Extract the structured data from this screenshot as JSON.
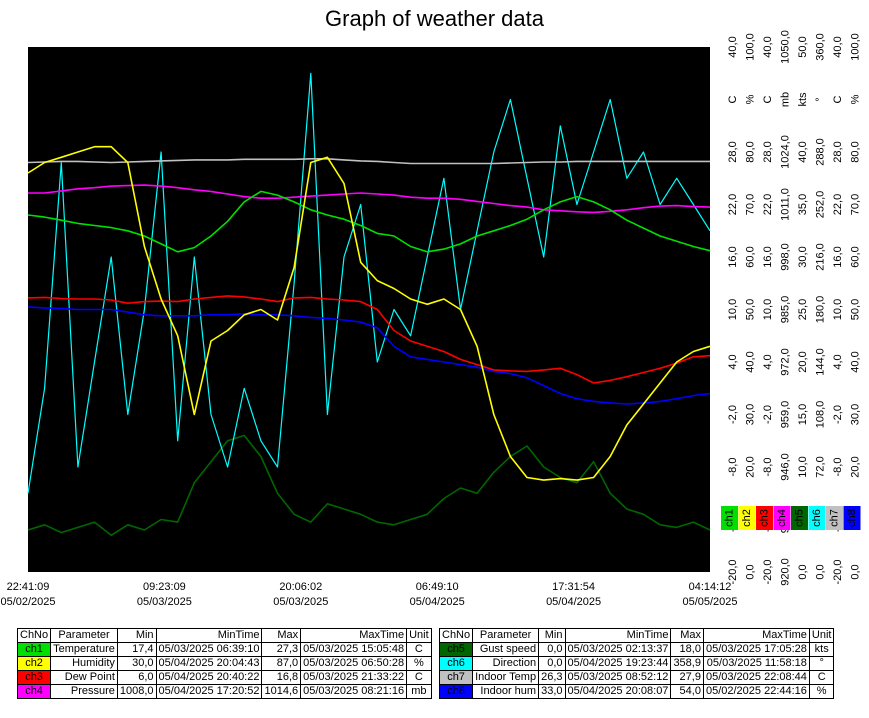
{
  "title": "Graph of weather data",
  "chart_data": {
    "type": "line",
    "x_ticks": [
      {
        "time": "22:41:09",
        "date": "05/02/2025"
      },
      {
        "time": "09:23:09",
        "date": "05/03/2025"
      },
      {
        "time": "20:06:02",
        "date": "05/03/2025"
      },
      {
        "time": "06:49:10",
        "date": "05/04/2025"
      },
      {
        "time": "17:31:54",
        "date": "05/04/2025"
      },
      {
        "time": "04:14:12",
        "date": "05/05/2025"
      }
    ],
    "x_range": [
      0,
      5
    ],
    "y_axes": [
      {
        "unit": "C",
        "ticks": [
          "-20,0",
          "-14,0",
          "-8,0",
          "-2,0",
          "4,0",
          "10,0",
          "16,0",
          "22,0",
          "28,0",
          "34,0",
          "40,0"
        ],
        "unit_at_tick": 9
      },
      {
        "unit": "%",
        "ticks": [
          "0,0",
          "10,0",
          "20,0",
          "30,0",
          "40,0",
          "50,0",
          "60,0",
          "70,0",
          "80,0",
          "90,0",
          "100,0"
        ],
        "unit_at_tick": 9
      },
      {
        "unit": "C",
        "ticks": [
          "-20,0",
          "-14,0",
          "-8,0",
          "-2,0",
          "4,0",
          "10,0",
          "16,0",
          "22,0",
          "28,0",
          "34,0",
          "40,0"
        ],
        "unit_at_tick": 9
      },
      {
        "unit": "mb",
        "ticks": [
          "920,0",
          "933,0",
          "946,0",
          "959,0",
          "972,0",
          "985,0",
          "998,0",
          "1011,0",
          "1024,0",
          "1037,0",
          "1050,0"
        ],
        "unit_at_tick": 9
      },
      {
        "unit": "kts",
        "ticks": [
          "0,0",
          "5,0",
          "10,0",
          "15,0",
          "20,0",
          "25,0",
          "30,0",
          "35,0",
          "40,0",
          "45,0",
          "50,0"
        ],
        "unit_at_tick": 9
      },
      {
        "unit": "°",
        "ticks": [
          "0,0",
          "36,0",
          "72,0",
          "108,0",
          "144,0",
          "180,0",
          "216,0",
          "252,0",
          "288,0",
          "324,0",
          "360,0"
        ],
        "unit_at_tick": 9
      },
      {
        "unit": "C",
        "ticks": [
          "-20,0",
          "-14,0",
          "-8,0",
          "-2,0",
          "4,0",
          "10,0",
          "16,0",
          "22,0",
          "28,0",
          "34,0",
          "40,0"
        ],
        "unit_at_tick": 9
      },
      {
        "unit": "%",
        "ticks": [
          "0,0",
          "10,0",
          "20,0",
          "30,0",
          "40,0",
          "50,0",
          "60,0",
          "70,0",
          "80,0",
          "90,0",
          "100,0"
        ],
        "unit_at_tick": 9
      }
    ],
    "y_range_fraction": [
      0,
      1
    ],
    "series": [
      {
        "ch": "ch1",
        "name": "Temperature",
        "color": "#00e000",
        "values_frac": [
          0.68,
          0.676,
          0.67,
          0.664,
          0.66,
          0.656,
          0.65,
          0.64,
          0.625,
          0.61,
          0.618,
          0.64,
          0.668,
          0.705,
          0.725,
          0.718,
          0.705,
          0.69,
          0.68,
          0.672,
          0.66,
          0.645,
          0.64,
          0.62,
          0.61,
          0.615,
          0.625,
          0.64,
          0.65,
          0.66,
          0.672,
          0.69,
          0.705,
          0.715,
          0.705,
          0.69,
          0.67,
          0.655,
          0.64,
          0.63,
          0.62,
          0.612
        ]
      },
      {
        "ch": "ch2",
        "name": "Humidity",
        "color": "#ffff00",
        "values_frac": [
          0.76,
          0.78,
          0.79,
          0.8,
          0.81,
          0.81,
          0.78,
          0.62,
          0.52,
          0.45,
          0.3,
          0.44,
          0.46,
          0.49,
          0.5,
          0.48,
          0.58,
          0.78,
          0.79,
          0.74,
          0.59,
          0.555,
          0.54,
          0.52,
          0.51,
          0.52,
          0.5,
          0.43,
          0.3,
          0.22,
          0.18,
          0.175,
          0.178,
          0.175,
          0.18,
          0.22,
          0.28,
          0.32,
          0.36,
          0.4,
          0.42,
          0.43
        ]
      },
      {
        "ch": "ch3",
        "name": "Dew Point",
        "color": "#ff0000",
        "values_frac": [
          0.522,
          0.523,
          0.521,
          0.52,
          0.52,
          0.518,
          0.512,
          0.515,
          0.516,
          0.515,
          0.52,
          0.523,
          0.526,
          0.524,
          0.52,
          0.515,
          0.522,
          0.523,
          0.52,
          0.518,
          0.515,
          0.5,
          0.46,
          0.44,
          0.43,
          0.42,
          0.405,
          0.395,
          0.385,
          0.383,
          0.382,
          0.385,
          0.388,
          0.376,
          0.36,
          0.365,
          0.372,
          0.38,
          0.388,
          0.398,
          0.41,
          0.412
        ]
      },
      {
        "ch": "ch4",
        "name": "Pressure",
        "color": "#ff00ff",
        "values_frac": [
          0.722,
          0.722,
          0.726,
          0.73,
          0.732,
          0.735,
          0.736,
          0.737,
          0.735,
          0.732,
          0.728,
          0.725,
          0.72,
          0.715,
          0.712,
          0.712,
          0.714,
          0.716,
          0.718,
          0.72,
          0.722,
          0.72,
          0.718,
          0.714,
          0.712,
          0.712,
          0.71,
          0.706,
          0.702,
          0.698,
          0.695,
          0.69,
          0.688,
          0.686,
          0.685,
          0.687,
          0.69,
          0.694,
          0.697,
          0.698,
          0.696,
          0.695
        ]
      },
      {
        "ch": "ch5",
        "name": "Gust speed",
        "color": "#006600",
        "values_frac": [
          0.08,
          0.09,
          0.075,
          0.085,
          0.095,
          0.07,
          0.09,
          0.08,
          0.1,
          0.095,
          0.17,
          0.21,
          0.25,
          0.26,
          0.22,
          0.15,
          0.11,
          0.095,
          0.13,
          0.12,
          0.11,
          0.095,
          0.09,
          0.1,
          0.11,
          0.14,
          0.16,
          0.15,
          0.19,
          0.22,
          0.24,
          0.2,
          0.18,
          0.17,
          0.21,
          0.15,
          0.12,
          0.11,
          0.09,
          0.085,
          0.095,
          0.08
        ]
      },
      {
        "ch": "ch6",
        "name": "Direction",
        "color": "#00ffff",
        "values_frac": [
          0.15,
          0.35,
          0.78,
          0.2,
          0.4,
          0.6,
          0.3,
          0.5,
          0.8,
          0.25,
          0.6,
          0.3,
          0.2,
          0.35,
          0.25,
          0.2,
          0.55,
          0.95,
          0.3,
          0.6,
          0.7,
          0.4,
          0.5,
          0.45,
          0.6,
          0.75,
          0.5,
          0.65,
          0.8,
          0.9,
          0.75,
          0.6,
          0.85,
          0.7,
          0.8,
          0.9,
          0.75,
          0.8,
          0.7,
          0.75,
          0.7,
          0.65
        ]
      },
      {
        "ch": "ch7",
        "name": "Indoor Temp",
        "color": "#c0c0c0",
        "values_frac": [
          0.78,
          0.781,
          0.782,
          0.782,
          0.781,
          0.78,
          0.781,
          0.782,
          0.783,
          0.784,
          0.785,
          0.785,
          0.785,
          0.786,
          0.786,
          0.786,
          0.786,
          0.787,
          0.787,
          0.785,
          0.783,
          0.782,
          0.78,
          0.778,
          0.778,
          0.778,
          0.778,
          0.778,
          0.778,
          0.779,
          0.78,
          0.781,
          0.781,
          0.782,
          0.782,
          0.782,
          0.782,
          0.782,
          0.782,
          0.782,
          0.782,
          0.782
        ]
      },
      {
        "ch": "ch8",
        "name": "Indoor hum",
        "color": "#0000ff",
        "values_frac": [
          0.505,
          0.503,
          0.502,
          0.5,
          0.5,
          0.5,
          0.495,
          0.49,
          0.488,
          0.488,
          0.488,
          0.49,
          0.49,
          0.492,
          0.49,
          0.49,
          0.488,
          0.485,
          0.483,
          0.48,
          0.476,
          0.465,
          0.43,
          0.41,
          0.405,
          0.4,
          0.395,
          0.39,
          0.382,
          0.378,
          0.37,
          0.355,
          0.34,
          0.33,
          0.325,
          0.322,
          0.32,
          0.322,
          0.325,
          0.33,
          0.336,
          0.34
        ]
      }
    ],
    "legend": {
      "placement": "right",
      "entries": [
        "ch1",
        "ch2",
        "ch3",
        "ch4",
        "ch5",
        "ch6",
        "ch7",
        "ch8"
      ]
    },
    "grid": false,
    "background": "#000000"
  },
  "tables": {
    "headers": [
      "ChNo",
      "Parameter",
      "Min",
      "MinTime",
      "Max",
      "MaxTime",
      "Unit"
    ],
    "left": [
      {
        "ch": "ch1",
        "color": "#00e000",
        "param": "Temperature",
        "min": "17,4",
        "min_time": "05/03/2025 06:39:10",
        "max": "27,3",
        "max_time": "05/03/2025 15:05:48",
        "unit": "C"
      },
      {
        "ch": "ch2",
        "color": "#ffff00",
        "param": "Humidity",
        "min": "30,0",
        "min_time": "05/04/2025 20:04:43",
        "max": "87,0",
        "max_time": "05/03/2025 06:50:28",
        "unit": "%"
      },
      {
        "ch": "ch3",
        "color": "#ff0000",
        "param": "Dew Point",
        "min": "6,0",
        "min_time": "05/04/2025 20:40:22",
        "max": "16,8",
        "max_time": "05/03/2025 21:33:22",
        "unit": "C"
      },
      {
        "ch": "ch4",
        "color": "#ff00ff",
        "param": "Pressure",
        "min": "1008,0",
        "min_time": "05/04/2025 17:20:52",
        "max": "1014,6",
        "max_time": "05/03/2025 08:21:16",
        "unit": "mb"
      }
    ],
    "right": [
      {
        "ch": "ch5",
        "color": "#006600",
        "param": "Gust speed",
        "min": "0,0",
        "min_time": "05/03/2025 02:13:37",
        "max": "18,0",
        "max_time": "05/03/2025 17:05:28",
        "unit": "kts"
      },
      {
        "ch": "ch6",
        "color": "#00ffff",
        "param": "Direction",
        "min": "0,0",
        "min_time": "05/04/2025 19:23:44",
        "max": "358,9",
        "max_time": "05/03/2025 11:58:18",
        "unit": "°"
      },
      {
        "ch": "ch7",
        "color": "#c0c0c0",
        "param": "Indoor Temp",
        "min": "26,3",
        "min_time": "05/03/2025 08:52:12",
        "max": "27,9",
        "max_time": "05/03/2025 22:08:44",
        "unit": "C"
      },
      {
        "ch": "ch8",
        "color": "#0000ff",
        "param": "Indoor hum",
        "min": "33,0",
        "min_time": "05/04/2025 20:08:07",
        "max": "54,0",
        "max_time": "05/02/2025 22:44:16",
        "unit": "%"
      }
    ]
  }
}
